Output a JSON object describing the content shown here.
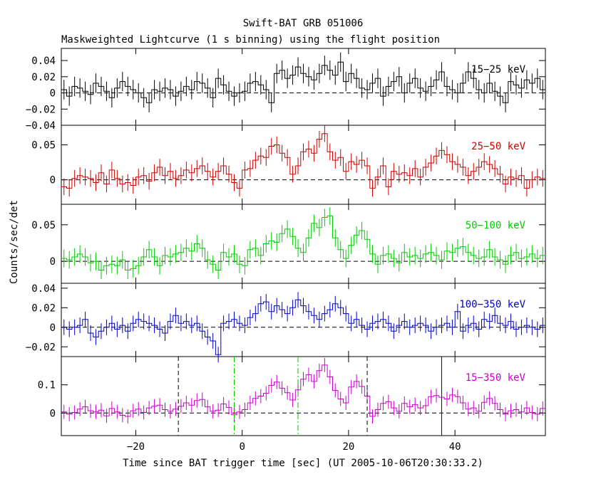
{
  "title": "Swift-BAT GRB 051006",
  "subtitle": "Maskweighted Lightcurve (1 s binning) using the flight position",
  "xlabel": "Time since BAT trigger time [sec] (UT 2005-10-06T20:30:33.2)",
  "ylabel": "Counts/sec/det",
  "chart_data": {
    "type": "line",
    "x": {
      "min": -34,
      "max": 57,
      "ticks": [
        -20,
        0,
        20,
        40
      ],
      "tick_labels": [
        "−20",
        "0",
        "20",
        "40"
      ]
    },
    "bin_width_s": 1,
    "vertical_markers": [
      {
        "x": -12,
        "style": "dashed",
        "color": "#000000"
      },
      {
        "x": -1.5,
        "style": "dashdot",
        "color": "#00cc00"
      },
      {
        "x": 10.5,
        "style": "dashdot",
        "color": "#00cc00"
      },
      {
        "x": 23.5,
        "style": "dashed",
        "color": "#000000"
      },
      {
        "x": 37.5,
        "style": "solid",
        "color": "#0000cc"
      }
    ],
    "panels": [
      {
        "name": "15−25 keV",
        "color": "#000000",
        "ylim": [
          -0.04,
          0.055
        ],
        "yticks": [
          -0.04,
          -0.02,
          0,
          0.02,
          0.04
        ],
        "ytick_labels": [
          "−0.04",
          "−0.02",
          "0",
          "0.02",
          "0.04"
        ],
        "err": 0.012,
        "values": [
          0.004,
          -0.004,
          0.008,
          0.006,
          0.002,
          -0.002,
          0.012,
          0.008,
          0.002,
          -0.006,
          0.006,
          0.014,
          0.008,
          0.004,
          0.0,
          -0.006,
          -0.012,
          0.004,
          0.002,
          0.006,
          0.004,
          -0.004,
          0.002,
          0.008,
          0.004,
          0.014,
          0.012,
          0.006,
          -0.006,
          0.018,
          0.01,
          0.002,
          -0.004,
          0.0,
          0.002,
          0.012,
          0.014,
          0.01,
          0.004,
          -0.012,
          0.024,
          0.028,
          0.018,
          0.022,
          0.032,
          0.024,
          0.02,
          0.016,
          0.024,
          0.034,
          0.028,
          0.022,
          0.038,
          0.014,
          0.024,
          0.018,
          0.006,
          0.004,
          0.012,
          0.018,
          -0.004,
          0.008,
          0.014,
          0.02,
          0.0,
          0.012,
          0.018,
          0.006,
          0.002,
          0.008,
          0.016,
          0.026,
          0.008,
          0.004,
          0.0,
          0.012,
          0.026,
          0.018,
          0.004,
          0.0,
          0.012,
          0.002,
          -0.004,
          -0.012,
          0.014,
          0.01,
          0.006,
          0.016,
          0.012,
          0.018,
          0.004
        ]
      },
      {
        "name": "25−50 keV",
        "color": "#cc0000",
        "ylim": [
          -0.035,
          0.078
        ],
        "yticks": [
          0,
          0.05
        ],
        "ytick_labels": [
          "0",
          "0.05"
        ],
        "err": 0.012,
        "values": [
          -0.01,
          -0.012,
          0.002,
          0.006,
          0.004,
          0.002,
          -0.004,
          0.01,
          -0.006,
          0.014,
          0.002,
          -0.006,
          -0.004,
          -0.008,
          0.004,
          0.006,
          -0.002,
          0.01,
          0.018,
          0.006,
          0.012,
          0.002,
          0.006,
          0.014,
          0.01,
          0.016,
          0.02,
          0.012,
          0.004,
          0.012,
          0.02,
          0.008,
          -0.004,
          -0.012,
          0.014,
          0.016,
          0.028,
          0.034,
          0.032,
          0.048,
          0.05,
          0.038,
          0.032,
          0.008,
          0.02,
          0.04,
          0.044,
          0.038,
          0.058,
          0.066,
          0.04,
          0.028,
          0.032,
          0.012,
          0.026,
          0.022,
          0.028,
          0.02,
          -0.012,
          0.004,
          0.02,
          -0.01,
          0.012,
          0.008,
          0.01,
          0.006,
          0.016,
          0.004,
          0.018,
          0.024,
          0.034,
          0.042,
          0.036,
          0.026,
          0.022,
          0.018,
          0.006,
          0.012,
          0.018,
          0.026,
          0.022,
          0.016,
          0.008,
          -0.006,
          0.004,
          0.002,
          0.006,
          -0.012,
          0.0,
          0.004,
          0.002
        ]
      },
      {
        "name": "50−100 keV",
        "color": "#00cc00",
        "ylim": [
          -0.03,
          0.078
        ],
        "yticks": [
          0,
          0.05
        ],
        "ytick_labels": [
          "0",
          "0.05"
        ],
        "err": 0.012,
        "values": [
          0.004,
          0.002,
          0.006,
          0.01,
          0.006,
          -0.002,
          0.0,
          -0.012,
          -0.006,
          -0.004,
          -0.006,
          0.002,
          -0.012,
          -0.01,
          -0.006,
          0.006,
          0.016,
          0.006,
          -0.006,
          0.008,
          0.006,
          0.01,
          0.012,
          0.018,
          0.014,
          0.024,
          0.018,
          0.002,
          -0.004,
          -0.012,
          0.012,
          0.006,
          0.01,
          -0.004,
          -0.006,
          0.016,
          0.018,
          0.008,
          0.024,
          0.028,
          0.026,
          0.038,
          0.044,
          0.034,
          0.018,
          0.012,
          0.032,
          0.052,
          0.046,
          0.06,
          0.062,
          0.032,
          0.016,
          0.004,
          0.022,
          0.036,
          0.042,
          0.03,
          0.01,
          -0.004,
          0.008,
          0.01,
          0.004,
          -0.002,
          0.012,
          0.006,
          0.008,
          0.004,
          0.01,
          0.012,
          0.008,
          0.002,
          0.014,
          0.012,
          0.018,
          0.02,
          0.012,
          0.008,
          0.004,
          0.006,
          0.016,
          0.006,
          0.002,
          -0.004,
          0.008,
          0.012,
          0.004,
          0.006,
          0.01,
          0.004,
          0.008
        ]
      },
      {
        "name": "100−350 keV",
        "color": "#0000cc",
        "ylim": [
          -0.03,
          0.045
        ],
        "yticks": [
          -0.02,
          0,
          0.02,
          0.04
        ],
        "ytick_labels": [
          "−0.02",
          "0",
          "0.02",
          "0.04"
        ],
        "err": 0.008,
        "values": [
          0.0,
          -0.002,
          0.0,
          0.002,
          0.008,
          -0.006,
          -0.01,
          -0.004,
          0.0,
          0.004,
          -0.002,
          0.002,
          -0.004,
          0.004,
          0.008,
          0.006,
          0.004,
          0.002,
          -0.002,
          -0.006,
          0.006,
          0.012,
          0.004,
          0.006,
          0.002,
          0.004,
          -0.004,
          -0.01,
          -0.014,
          -0.028,
          0.004,
          0.006,
          0.008,
          0.004,
          0.002,
          0.01,
          0.014,
          0.024,
          0.026,
          0.016,
          0.022,
          0.018,
          0.014,
          0.02,
          0.028,
          0.022,
          0.016,
          0.012,
          0.008,
          0.014,
          0.018,
          0.024,
          0.02,
          0.014,
          0.004,
          0.008,
          0.002,
          -0.002,
          0.004,
          0.006,
          0.008,
          0.004,
          -0.004,
          0.002,
          0.006,
          0.0,
          0.002,
          0.004,
          0.002,
          -0.004,
          0.0,
          0.002,
          0.004,
          0.0,
          0.016,
          -0.004,
          0.002,
          0.004,
          -0.002,
          0.008,
          0.006,
          0.012,
          0.004,
          0.002,
          0.006,
          -0.002,
          0.0,
          0.002,
          0.0,
          -0.002,
          0.002
        ]
      },
      {
        "name": "15−350 keV",
        "color": "#cc00cc",
        "ylim": [
          -0.08,
          0.2
        ],
        "yticks": [
          0,
          0.1
        ],
        "ytick_labels": [
          "0",
          "0.1"
        ],
        "err": 0.025,
        "values": [
          0.004,
          -0.004,
          0.002,
          0.014,
          0.022,
          0.008,
          0.004,
          0.01,
          -0.01,
          0.016,
          0.004,
          -0.008,
          -0.012,
          0.008,
          0.014,
          0.002,
          0.018,
          0.024,
          0.028,
          0.012,
          0.006,
          0.014,
          0.024,
          0.036,
          0.028,
          0.044,
          0.048,
          0.022,
          0.006,
          0.01,
          0.032,
          0.02,
          -0.006,
          0.004,
          0.012,
          0.036,
          0.052,
          0.06,
          0.07,
          0.098,
          0.11,
          0.088,
          0.072,
          0.046,
          0.082,
          0.12,
          0.136,
          0.112,
          0.15,
          0.17,
          0.128,
          0.08,
          0.05,
          0.036,
          0.092,
          0.112,
          0.094,
          0.06,
          -0.012,
          0.012,
          0.034,
          0.04,
          0.018,
          0.006,
          0.034,
          0.022,
          0.03,
          0.018,
          0.026,
          0.058,
          0.062,
          0.056,
          0.05,
          0.064,
          0.058,
          0.036,
          0.014,
          0.018,
          0.006,
          0.038,
          0.052,
          0.034,
          0.012,
          -0.004,
          0.008,
          0.012,
          0.004,
          0.018,
          0.002,
          -0.004,
          0.016
        ]
      }
    ]
  }
}
